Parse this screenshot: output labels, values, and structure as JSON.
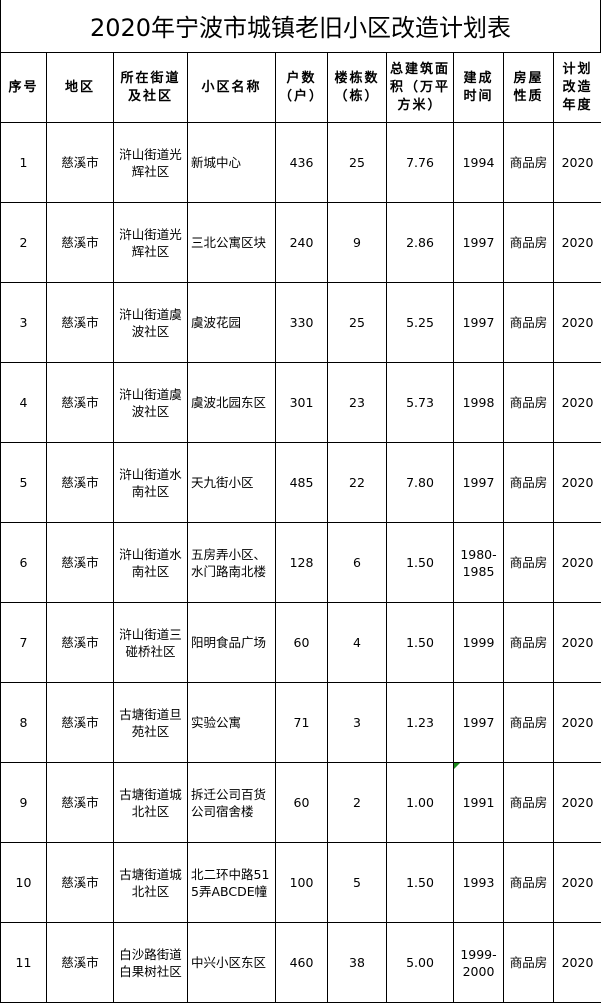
{
  "title": "2020年宁波市城镇老旧小区改造计划表",
  "headers": [
    "序号",
    "地区",
    "所在街道及社区",
    "小区名称",
    "户数（户）",
    "楼栋数（栋）",
    "总建筑面积（万平方米）",
    "建成时间",
    "房屋性质",
    "计划改造年度"
  ],
  "rows": [
    [
      "1",
      "慈溪市",
      "浒山街道光辉社区",
      "新城中心",
      "436",
      "25",
      "7.76",
      "1994",
      "商品房",
      "2020"
    ],
    [
      "2",
      "慈溪市",
      "浒山街道光辉社区",
      "三北公寓区块",
      "240",
      "9",
      "2.86",
      "1997",
      "商品房",
      "2020"
    ],
    [
      "3",
      "慈溪市",
      "浒山街道虞波社区",
      "虞波花园",
      "330",
      "25",
      "5.25",
      "1997",
      "商品房",
      "2020"
    ],
    [
      "4",
      "慈溪市",
      "浒山街道虞波社区",
      "虞波北园东区",
      "301",
      "23",
      "5.73",
      "1998",
      "商品房",
      "2020"
    ],
    [
      "5",
      "慈溪市",
      "浒山街道水南社区",
      "天九街小区",
      "485",
      "22",
      "7.80",
      "1997",
      "商品房",
      "2020"
    ],
    [
      "6",
      "慈溪市",
      "浒山街道水南社区",
      "五房弄小区、水门路南北楼",
      "128",
      "6",
      "1.50",
      "1980-1985",
      "商品房",
      "2020"
    ],
    [
      "7",
      "慈溪市",
      "浒山街道三碰桥社区",
      "阳明食品广场",
      "60",
      "4",
      "1.50",
      "1999",
      "商品房",
      "2020"
    ],
    [
      "8",
      "慈溪市",
      "古塘街道旦苑社区",
      "实验公寓",
      "71",
      "3",
      "1.23",
      "1997",
      "商品房",
      "2020"
    ],
    [
      "9",
      "慈溪市",
      "古塘街道城北社区",
      "拆迁公司百货公司宿舍楼",
      "60",
      "2",
      "1.00",
      "1991",
      "商品房",
      "2020"
    ],
    [
      "10",
      "慈溪市",
      "古塘街道城北社区",
      "北二环中路515弄ABCDE幢",
      "100",
      "5",
      "1.50",
      "1993",
      "商品房",
      "2020"
    ],
    [
      "11",
      "慈溪市",
      "白沙路街道白果树社区",
      "中兴小区东区",
      "460",
      "38",
      "5.00",
      "1999-2000",
      "商品房",
      "2020"
    ]
  ],
  "colors": {
    "grid": "#000000",
    "comment_marker": "#1a8a1a"
  }
}
